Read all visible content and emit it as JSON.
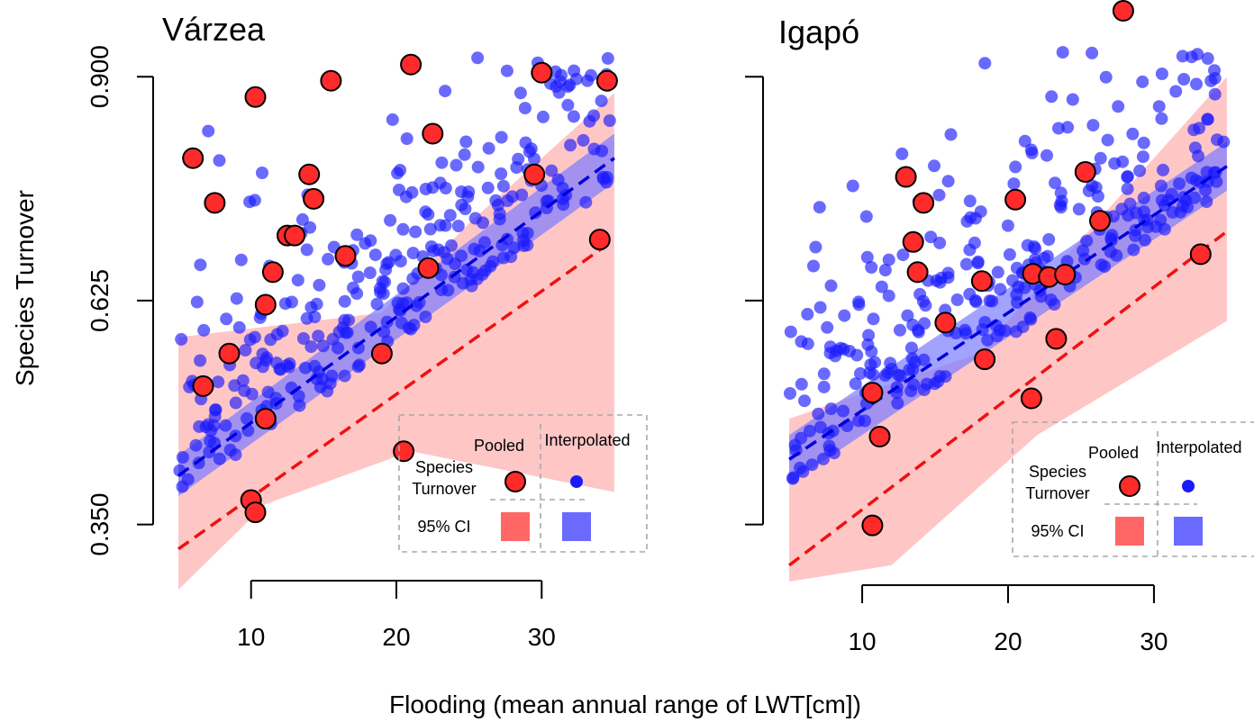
{
  "figure": {
    "ylabel": "Species Turnover",
    "xlabel": "Flooding (mean annual range of LWT[cm])"
  },
  "colors": {
    "pooled_point": "#ff2a2a",
    "pooled_line": "#ee1111",
    "pooled_ci": "#ffb3b3",
    "interp_point": "#1a1aff",
    "interp_line": "#0000dd",
    "interp_ci": "#7b7bff"
  },
  "legend": {
    "col_pooled": "Pooled",
    "col_interp": "Interpolated",
    "row_turnover_1": "Species",
    "row_turnover_2": "Turnover",
    "row_ci": "95% CI"
  },
  "chart_data": [
    {
      "type": "scatter",
      "title": "Várzea",
      "xlabel": "Flooding (mean annual range of LWT[cm])",
      "ylabel": "Species Turnover",
      "xlim": [
        4.5,
        35.5
      ],
      "ylim": [
        0.27,
        0.95
      ],
      "x_ticks": [
        "10",
        "20",
        "30"
      ],
      "y_ticks": [
        "0.350",
        "0.625",
        "0.900"
      ],
      "x_tick_values": [
        10,
        20,
        30
      ],
      "y_tick_values": [
        0.35,
        0.625,
        0.9
      ],
      "series": [
        {
          "name": "Pooled",
          "points": [
            [
              6.0,
              0.8
            ],
            [
              6.7,
              0.52
            ],
            [
              7.5,
              0.745
            ],
            [
              8.5,
              0.56
            ],
            [
              10.3,
              0.875
            ],
            [
              11.0,
              0.62
            ],
            [
              11.5,
              0.66
            ],
            [
              10.0,
              0.38
            ],
            [
              10.3,
              0.365
            ],
            [
              11.0,
              0.48
            ],
            [
              12.5,
              0.705
            ],
            [
              13.0,
              0.705
            ],
            [
              14.0,
              0.78
            ],
            [
              14.3,
              0.75
            ],
            [
              15.5,
              0.895
            ],
            [
              16.5,
              0.68
            ],
            [
              19.0,
              0.56
            ],
            [
              20.5,
              0.44
            ],
            [
              21.0,
              0.915
            ],
            [
              22.2,
              0.665
            ],
            [
              22.5,
              0.83
            ],
            [
              29.5,
              0.78
            ],
            [
              30.0,
              0.905
            ],
            [
              34.0,
              0.7
            ],
            [
              34.5,
              0.895
            ]
          ],
          "trend": [
            [
              5.0,
              0.32
            ],
            [
              35.0,
              0.7
            ]
          ],
          "ci_upper": [
            [
              5.0,
              0.58
            ],
            [
              19.0,
              0.61
            ],
            [
              25.0,
              0.72
            ],
            [
              35.0,
              0.88
            ]
          ],
          "ci_lower": [
            [
              5.0,
              0.27
            ],
            [
              11.0,
              0.375
            ],
            [
              21.0,
              0.44
            ],
            [
              35.0,
              0.39
            ]
          ]
        },
        {
          "name": "Interpolated",
          "trend": [
            [
              5.0,
              0.41
            ],
            [
              35.0,
              0.8
            ]
          ],
          "ci_upper": [
            [
              5.0,
              0.435
            ],
            [
              35.0,
              0.83
            ]
          ],
          "ci_lower": [
            [
              5.0,
              0.385
            ],
            [
              35.0,
              0.77
            ]
          ]
        }
      ]
    },
    {
      "type": "scatter",
      "title": "Igapó",
      "xlabel": "Flooding (mean annual range of LWT[cm])",
      "ylabel": "Species Turnover",
      "xlim": [
        4.5,
        35.5
      ],
      "ylim": [
        0.27,
        0.95
      ],
      "x_ticks": [
        "10",
        "20",
        "30"
      ],
      "x_tick_values": [
        10,
        20,
        30
      ],
      "series": [
        {
          "name": "Pooled",
          "points": [
            [
              10.7,
              0.512
            ],
            [
              11.2,
              0.458
            ],
            [
              10.7,
              0.349
            ],
            [
              13.0,
              0.777
            ],
            [
              14.2,
              0.745
            ],
            [
              13.5,
              0.697
            ],
            [
              13.8,
              0.66
            ],
            [
              15.7,
              0.598
            ],
            [
              18.2,
              0.649
            ],
            [
              18.4,
              0.553
            ],
            [
              20.5,
              0.749
            ],
            [
              21.6,
              0.505
            ],
            [
              21.7,
              0.658
            ],
            [
              22.8,
              0.654
            ],
            [
              23.3,
              0.578
            ],
            [
              23.9,
              0.657
            ],
            [
              25.3,
              0.783
            ],
            [
              26.3,
              0.723
            ],
            [
              27.9,
              0.981
            ],
            [
              33.2,
              0.682
            ]
          ],
          "trend": [
            [
              5.0,
              0.3
            ],
            [
              35.0,
              0.71
            ]
          ],
          "ci_upper": [
            [
              5.0,
              0.48
            ],
            [
              18.0,
              0.56
            ],
            [
              35.0,
              0.9
            ]
          ],
          "ci_lower": [
            [
              5.0,
              0.28
            ],
            [
              12.0,
              0.3
            ],
            [
              22.0,
              0.46
            ],
            [
              35.0,
              0.6
            ]
          ]
        },
        {
          "name": "Interpolated",
          "trend": [
            [
              5.0,
              0.43
            ],
            [
              35.0,
              0.79
            ]
          ],
          "ci_upper": [
            [
              5.0,
              0.46
            ],
            [
              35.0,
              0.82
            ]
          ],
          "ci_lower": [
            [
              5.0,
              0.4
            ],
            [
              35.0,
              0.76
            ]
          ]
        }
      ]
    }
  ]
}
